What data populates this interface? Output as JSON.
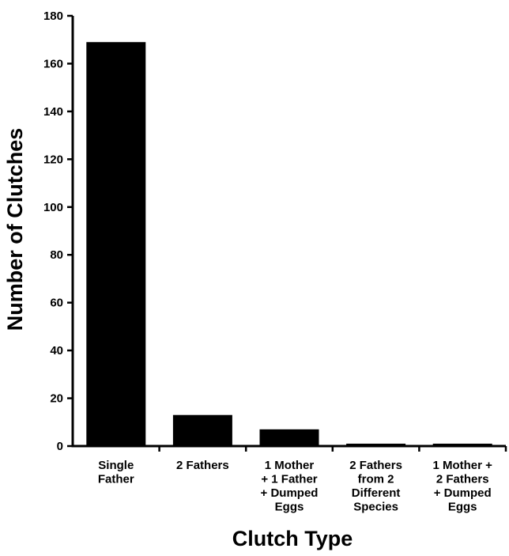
{
  "chart_data": {
    "type": "bar",
    "categories": [
      [
        "Single",
        "Father"
      ],
      [
        "2 Fathers"
      ],
      [
        "1 Mother",
        "+ 1 Father",
        "+ Dumped",
        "Eggs"
      ],
      [
        "2 Fathers",
        "from 2",
        "Different",
        "Species"
      ],
      [
        "1 Mother +",
        "2 Fathers",
        "+ Dumped",
        "Eggs"
      ]
    ],
    "values": [
      169,
      13,
      7,
      1,
      1
    ],
    "title": "",
    "xlabel": "Clutch Type",
    "ylabel": "Number of Clutches",
    "ylim": [
      0,
      180
    ],
    "yticks": [
      0,
      20,
      40,
      60,
      80,
      100,
      120,
      140,
      160,
      180
    ],
    "grid": false,
    "bar_color": "#000000",
    "axis_color": "#000000"
  }
}
